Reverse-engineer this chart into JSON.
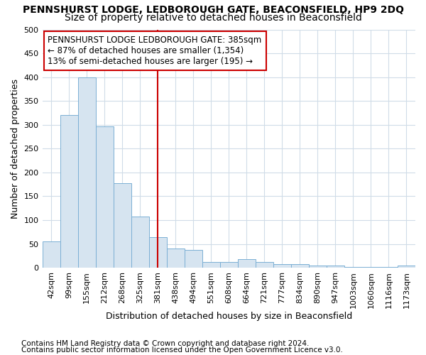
{
  "title": "PENNSHURST LODGE, LEDBOROUGH GATE, BEACONSFIELD, HP9 2DQ",
  "subtitle": "Size of property relative to detached houses in Beaconsfield",
  "xlabel": "Distribution of detached houses by size in Beaconsfield",
  "ylabel": "Number of detached properties",
  "footnote1": "Contains HM Land Registry data © Crown copyright and database right 2024.",
  "footnote2": "Contains public sector information licensed under the Open Government Licence v3.0.",
  "bar_labels": [
    "42sqm",
    "99sqm",
    "155sqm",
    "212sqm",
    "268sqm",
    "325sqm",
    "381sqm",
    "438sqm",
    "494sqm",
    "551sqm",
    "608sqm",
    "664sqm",
    "721sqm",
    "777sqm",
    "834sqm",
    "890sqm",
    "947sqm",
    "1003sqm",
    "1060sqm",
    "1116sqm",
    "1173sqm"
  ],
  "bar_values": [
    55,
    320,
    400,
    297,
    177,
    108,
    65,
    40,
    37,
    12,
    12,
    18,
    12,
    8,
    8,
    5,
    5,
    2,
    2,
    2,
    5
  ],
  "bar_color": "#d6e4f0",
  "bar_edge_color": "#7bafd4",
  "vline_x": 6.0,
  "vline_color": "#cc0000",
  "annotation_text": "PENNSHURST LODGE LEDBOROUGH GATE: 385sqm\n← 87% of detached houses are smaller (1,354)\n13% of semi-detached houses are larger (195) →",
  "annotation_box_facecolor": "#ffffff",
  "annotation_box_edgecolor": "#cc0000",
  "ylim": [
    0,
    500
  ],
  "yticks": [
    0,
    50,
    100,
    150,
    200,
    250,
    300,
    350,
    400,
    450,
    500
  ],
  "background_color": "#ffffff",
  "grid_color": "#d0dce8",
  "title_fontsize": 10,
  "subtitle_fontsize": 10,
  "axis_label_fontsize": 9,
  "tick_fontsize": 8,
  "annotation_fontsize": 8.5,
  "footnote_fontsize": 7.5
}
